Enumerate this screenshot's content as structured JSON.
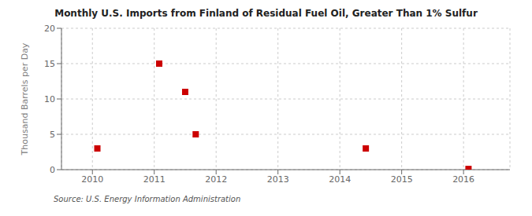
{
  "chart_data": {
    "type": "scatter",
    "title": "Monthly U.S. Imports from Finland of Residual Fuel Oil, Greater Than 1% Sulfur",
    "ylabel": "Thousand Barrels per Day",
    "annotations": [
      "Source: U.S. Energy Information Administration"
    ],
    "x": [
      2010.08,
      2011.08,
      2011.5,
      2011.67,
      2014.42,
      2016.08
    ],
    "values": [
      3,
      15,
      11,
      5,
      3,
      0.1
    ],
    "color": "#cc0000",
    "marker": "square",
    "xlim": [
      2009.5,
      2016.75
    ],
    "ylim": [
      0,
      20
    ],
    "xticks": [
      2010,
      2011,
      2012,
      2013,
      2014,
      2015,
      2016
    ],
    "yticks": [
      0,
      5,
      10,
      15,
      20
    ],
    "grid": true
  }
}
